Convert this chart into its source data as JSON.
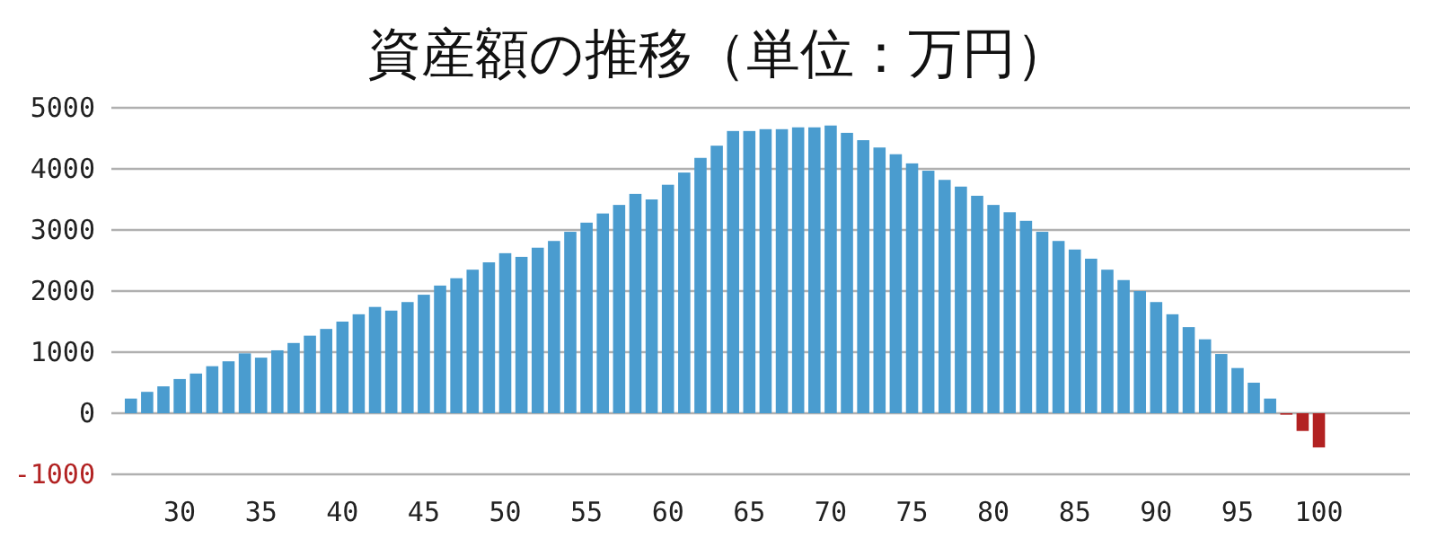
{
  "chart_data": {
    "type": "bar",
    "title": "資産額の推移（単位：万円）",
    "x": [
      27,
      28,
      29,
      30,
      31,
      32,
      33,
      34,
      35,
      36,
      37,
      38,
      39,
      40,
      41,
      42,
      43,
      44,
      45,
      46,
      47,
      48,
      49,
      50,
      51,
      52,
      53,
      54,
      55,
      56,
      57,
      58,
      59,
      60,
      61,
      62,
      63,
      64,
      65,
      66,
      67,
      68,
      69,
      70,
      71,
      72,
      73,
      74,
      75,
      76,
      77,
      78,
      79,
      80,
      81,
      82,
      83,
      84,
      85,
      86,
      87,
      88,
      89,
      90,
      91,
      92,
      93,
      94,
      95,
      96,
      97,
      98,
      99,
      100
    ],
    "values": [
      240,
      350,
      440,
      560,
      650,
      770,
      850,
      980,
      910,
      1030,
      1150,
      1270,
      1380,
      1500,
      1620,
      1740,
      1680,
      1820,
      1940,
      2090,
      2210,
      2350,
      2470,
      2620,
      2560,
      2710,
      2820,
      2970,
      3120,
      3270,
      3410,
      3590,
      3500,
      3740,
      3940,
      4180,
      4380,
      4620,
      4620,
      4650,
      4650,
      4680,
      4680,
      4710,
      4590,
      4470,
      4350,
      4240,
      4090,
      3970,
      3820,
      3710,
      3560,
      3410,
      3290,
      3150,
      2970,
      2820,
      2680,
      2530,
      2350,
      2180,
      2000,
      1820,
      1620,
      1410,
      1210,
      970,
      740,
      500,
      240,
      -20,
      -290,
      -560
    ],
    "colors": [
      "#4a9ccf",
      "#4a9ccf",
      "#4a9ccf",
      "#4a9ccf",
      "#4a9ccf",
      "#4a9ccf",
      "#4a9ccf",
      "#4a9ccf",
      "#4a9ccf",
      "#4a9ccf",
      "#4a9ccf",
      "#4a9ccf",
      "#4a9ccf",
      "#4a9ccf",
      "#4a9ccf",
      "#4a9ccf",
      "#4a9ccf",
      "#4a9ccf",
      "#4a9ccf",
      "#4a9ccf",
      "#4a9ccf",
      "#4a9ccf",
      "#4a9ccf",
      "#4a9ccf",
      "#4a9ccf",
      "#4a9ccf",
      "#4a9ccf",
      "#4a9ccf",
      "#4a9ccf",
      "#4a9ccf",
      "#4a9ccf",
      "#4a9ccf",
      "#4a9ccf",
      "#4a9ccf",
      "#4a9ccf",
      "#4a9ccf",
      "#4a9ccf",
      "#4a9ccf",
      "#4a9ccf",
      "#4a9ccf",
      "#4a9ccf",
      "#4a9ccf",
      "#4a9ccf",
      "#4a9ccf",
      "#4a9ccf",
      "#4a9ccf",
      "#4a9ccf",
      "#4a9ccf",
      "#4a9ccf",
      "#4a9ccf",
      "#4a9ccf",
      "#4a9ccf",
      "#4a9ccf",
      "#4a9ccf",
      "#4a9ccf",
      "#4a9ccf",
      "#4a9ccf",
      "#4a9ccf",
      "#4a9ccf",
      "#4a9ccf",
      "#4a9ccf",
      "#4a9ccf",
      "#4a9ccf",
      "#4a9ccf",
      "#4a9ccf",
      "#4a9ccf",
      "#4a9ccf",
      "#4a9ccf",
      "#4a9ccf",
      "#4a9ccf",
      "#4a9ccf",
      "#b22222",
      "#b22222",
      "#b22222"
    ],
    "xlim": [
      25.8,
      105.6
    ],
    "xticks": [
      30,
      35,
      40,
      45,
      50,
      55,
      60,
      65,
      70,
      75,
      80,
      85,
      90,
      95,
      100
    ],
    "ylim": [
      -1000,
      5000
    ],
    "yticks": [
      -1000,
      0,
      1000,
      2000,
      3000,
      4000,
      5000
    ],
    "grid": "y"
  }
}
